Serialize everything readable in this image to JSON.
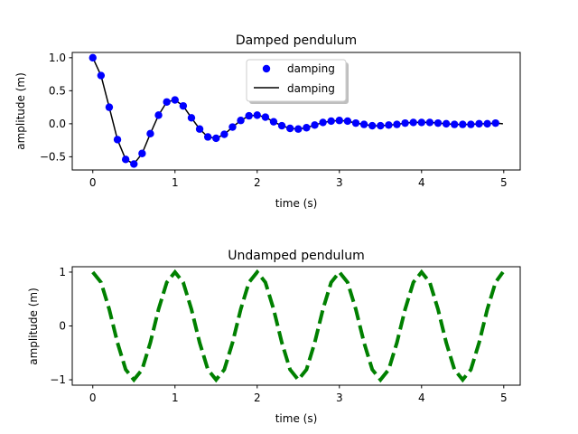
{
  "chart_data": [
    {
      "type": "line",
      "title": "Damped pendulum",
      "xlabel": "time (s)",
      "ylabel": "amplitude (m)",
      "xlim": [
        -0.25,
        5.2
      ],
      "ylim": [
        -0.7,
        1.08
      ],
      "xticks": [
        0,
        1,
        2,
        3,
        4,
        5
      ],
      "yticks": [
        -0.5,
        0.0,
        0.5,
        1.0
      ],
      "xtick_labels": [
        "0",
        "1",
        "2",
        "3",
        "4",
        "5"
      ],
      "ytick_labels": [
        "−0.5",
        "0.0",
        "0.5",
        "1.0"
      ],
      "grid": false,
      "legend": {
        "placement": "upper center",
        "shadow": true
      },
      "series": [
        {
          "name": "damping",
          "style": "markers",
          "color": "#0000ff",
          "x": [
            0.0,
            0.1,
            0.2,
            0.3,
            0.4,
            0.5,
            0.6,
            0.7,
            0.8,
            0.9,
            1.0,
            1.1,
            1.2,
            1.3,
            1.4,
            1.5,
            1.6,
            1.7,
            1.8,
            1.9,
            2.0,
            2.1,
            2.2,
            2.3,
            2.4,
            2.5,
            2.6,
            2.7,
            2.8,
            2.9,
            3.0,
            3.1,
            3.2,
            3.3,
            3.4,
            3.5,
            3.6,
            3.7,
            3.8,
            3.9,
            4.0,
            4.1,
            4.2,
            4.3,
            4.4,
            4.5,
            4.6,
            4.7,
            4.8,
            4.9
          ],
          "y": [
            1.0,
            0.73,
            0.25,
            -0.24,
            -0.54,
            -0.61,
            -0.45,
            -0.15,
            0.13,
            0.33,
            0.36,
            0.27,
            0.09,
            -0.08,
            -0.2,
            -0.22,
            -0.16,
            -0.05,
            0.05,
            0.12,
            0.13,
            0.1,
            0.03,
            -0.03,
            -0.07,
            -0.08,
            -0.06,
            -0.02,
            0.02,
            0.04,
            0.05,
            0.04,
            0.01,
            -0.01,
            -0.03,
            -0.03,
            -0.02,
            -0.01,
            0.01,
            0.02,
            0.02,
            0.02,
            0.01,
            0.0,
            -0.01,
            -0.01,
            -0.01,
            0.0,
            0.0,
            0.01
          ]
        },
        {
          "name": "damping",
          "style": "line",
          "color": "#000000",
          "x": [
            0.0,
            0.1,
            0.2,
            0.3,
            0.4,
            0.5,
            0.6,
            0.7,
            0.8,
            0.9,
            1.0,
            1.1,
            1.2,
            1.3,
            1.4,
            1.5,
            1.6,
            1.7,
            1.8,
            1.9,
            2.0,
            2.1,
            2.2,
            2.3,
            2.4,
            2.5,
            2.6,
            2.7,
            2.8,
            2.9,
            3.0,
            3.1,
            3.2,
            3.3,
            3.4,
            3.5,
            3.6,
            3.7,
            3.8,
            3.9,
            4.0,
            4.1,
            4.2,
            4.3,
            4.4,
            4.5,
            4.6,
            4.7,
            4.8,
            4.9,
            4.99
          ],
          "y": [
            1.0,
            0.73,
            0.25,
            -0.24,
            -0.54,
            -0.61,
            -0.45,
            -0.15,
            0.13,
            0.33,
            0.36,
            0.27,
            0.09,
            -0.08,
            -0.2,
            -0.22,
            -0.16,
            -0.05,
            0.05,
            0.12,
            0.13,
            0.1,
            0.03,
            -0.03,
            -0.07,
            -0.08,
            -0.06,
            -0.02,
            0.02,
            0.04,
            0.05,
            0.04,
            0.01,
            -0.01,
            -0.03,
            -0.03,
            -0.02,
            -0.01,
            0.01,
            0.02,
            0.02,
            0.02,
            0.01,
            0.0,
            -0.01,
            -0.01,
            -0.01,
            0.0,
            0.0,
            0.01,
            0.0
          ]
        }
      ]
    },
    {
      "type": "line",
      "title": "Undamped pendulum",
      "xlabel": "time (s)",
      "ylabel": "amplitude (m)",
      "xlim": [
        -0.25,
        5.2
      ],
      "ylim": [
        -1.1,
        1.1
      ],
      "xticks": [
        0,
        1,
        2,
        3,
        4,
        5
      ],
      "yticks": [
        -1,
        0,
        1
      ],
      "xtick_labels": [
        "0",
        "1",
        "2",
        "3",
        "4",
        "5"
      ],
      "ytick_labels": [
        "−1",
        "0",
        "1"
      ],
      "grid": false,
      "series": [
        {
          "style": "dashed",
          "color": "#008000",
          "x": [
            0.0,
            0.1,
            0.2,
            0.3,
            0.4,
            0.5,
            0.6,
            0.7,
            0.8,
            0.9,
            1.0,
            1.1,
            1.2,
            1.3,
            1.4,
            1.5,
            1.6,
            1.7,
            1.8,
            1.9,
            2.0,
            2.1,
            2.2,
            2.3,
            2.4,
            2.5,
            2.6,
            2.7,
            2.8,
            2.9,
            3.0,
            3.1,
            3.2,
            3.3,
            3.4,
            3.5,
            3.6,
            3.7,
            3.8,
            3.9,
            4.0,
            4.1,
            4.2,
            4.3,
            4.4,
            4.5,
            4.6,
            4.7,
            4.8,
            4.9,
            4.99
          ],
          "y": [
            1.0,
            0.81,
            0.31,
            -0.31,
            -0.81,
            -1.0,
            -0.81,
            -0.31,
            0.31,
            0.81,
            1.0,
            0.81,
            0.31,
            -0.31,
            -0.81,
            -1.0,
            -0.81,
            -0.31,
            0.31,
            0.81,
            1.0,
            0.81,
            0.31,
            -0.31,
            -0.81,
            -1.0,
            -0.81,
            -0.31,
            0.31,
            0.81,
            1.0,
            0.81,
            0.31,
            -0.31,
            -0.81,
            -1.0,
            -0.81,
            -0.31,
            0.31,
            0.81,
            1.0,
            0.81,
            0.31,
            -0.31,
            -0.81,
            -1.0,
            -0.81,
            -0.31,
            0.31,
            0.81,
            1.0
          ]
        }
      ]
    }
  ]
}
